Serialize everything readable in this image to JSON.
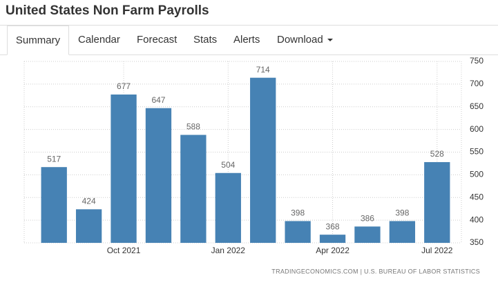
{
  "header": {
    "title": "United States Non Farm Payrolls"
  },
  "tabs": [
    "Summary",
    "Calendar",
    "Forecast",
    "Stats",
    "Alerts",
    "Download"
  ],
  "chart_data": {
    "type": "bar",
    "categories": [
      null,
      null,
      "Oct 2021",
      null,
      null,
      "Jan 2022",
      null,
      null,
      "Apr 2022",
      null,
      null,
      "Jul 2022"
    ],
    "values": [
      517,
      424,
      677,
      647,
      588,
      504,
      714,
      398,
      368,
      386,
      398,
      528
    ],
    "color": "#4682b4",
    "ylim": [
      350,
      750
    ],
    "yticks": [
      350,
      400,
      450,
      500,
      550,
      600,
      650,
      700,
      750
    ],
    "grid": true,
    "source": "TRADINGECONOMICS.COM | U.S. BUREAU OF LABOR STATISTICS"
  }
}
